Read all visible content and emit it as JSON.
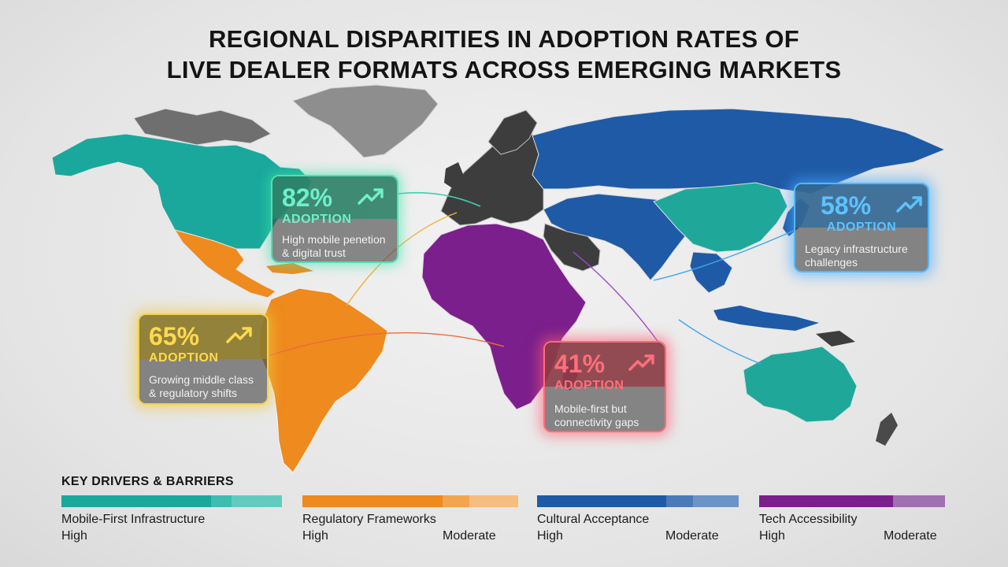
{
  "title": {
    "line1": "REGIONAL DISPARITIES IN ADOPTION RATES OF",
    "line2": "LIVE DEALER FORMATS ACROSS EMERGING MARKETS"
  },
  "colors": {
    "north_america": "#1aa89c",
    "latin_america": "#ee8a1e",
    "africa": "#7b1f8c",
    "asia": "#1f5aa6",
    "east_asia_oceania": "#1fa89a",
    "europe": "#3d3d3d",
    "greenland": "#8e8e8e"
  },
  "callouts": [
    {
      "id": "north-america",
      "percent": "82%",
      "label": "ADOPTION",
      "description": "High mobile penetion & digital trust",
      "color": "#4fe0b6",
      "icon": "trend-up-icon"
    },
    {
      "id": "latin-america",
      "percent": "65%",
      "label": "ADOPTION",
      "description": "Growing middle class & regulatory shifts",
      "color": "#f2d24a",
      "icon": "trend-up-icon"
    },
    {
      "id": "africa",
      "percent": "41%",
      "label": "ADOPTION",
      "description": "Mobile-first but connectivity gaps",
      "color": "#ff6b7a",
      "icon": "trend-up-icon"
    },
    {
      "id": "asia",
      "percent": "58%",
      "label": "ADOPTION",
      "description": "Legacy infrastructure challenges",
      "color": "#4fb8ff",
      "icon": "trend-up-icon"
    }
  ],
  "legend": {
    "title": "KEY DRIVERS & BARRIERS",
    "items": [
      {
        "name": "Mobile-First Infrastructure",
        "low_label": "High",
        "high_label": "",
        "color": "#1aa89c"
      },
      {
        "name": "Regulatory Frameworks",
        "low_label": "High",
        "high_label": "Moderate",
        "color": "#ee8a1e"
      },
      {
        "name": "Cultural Acceptance",
        "low_label": "High",
        "high_label": "Moderate",
        "color": "#1f5aa6"
      },
      {
        "name": "Tech Accessibility",
        "low_label": "High",
        "high_label": "Moderate",
        "color": "#7b1f8c"
      }
    ]
  }
}
